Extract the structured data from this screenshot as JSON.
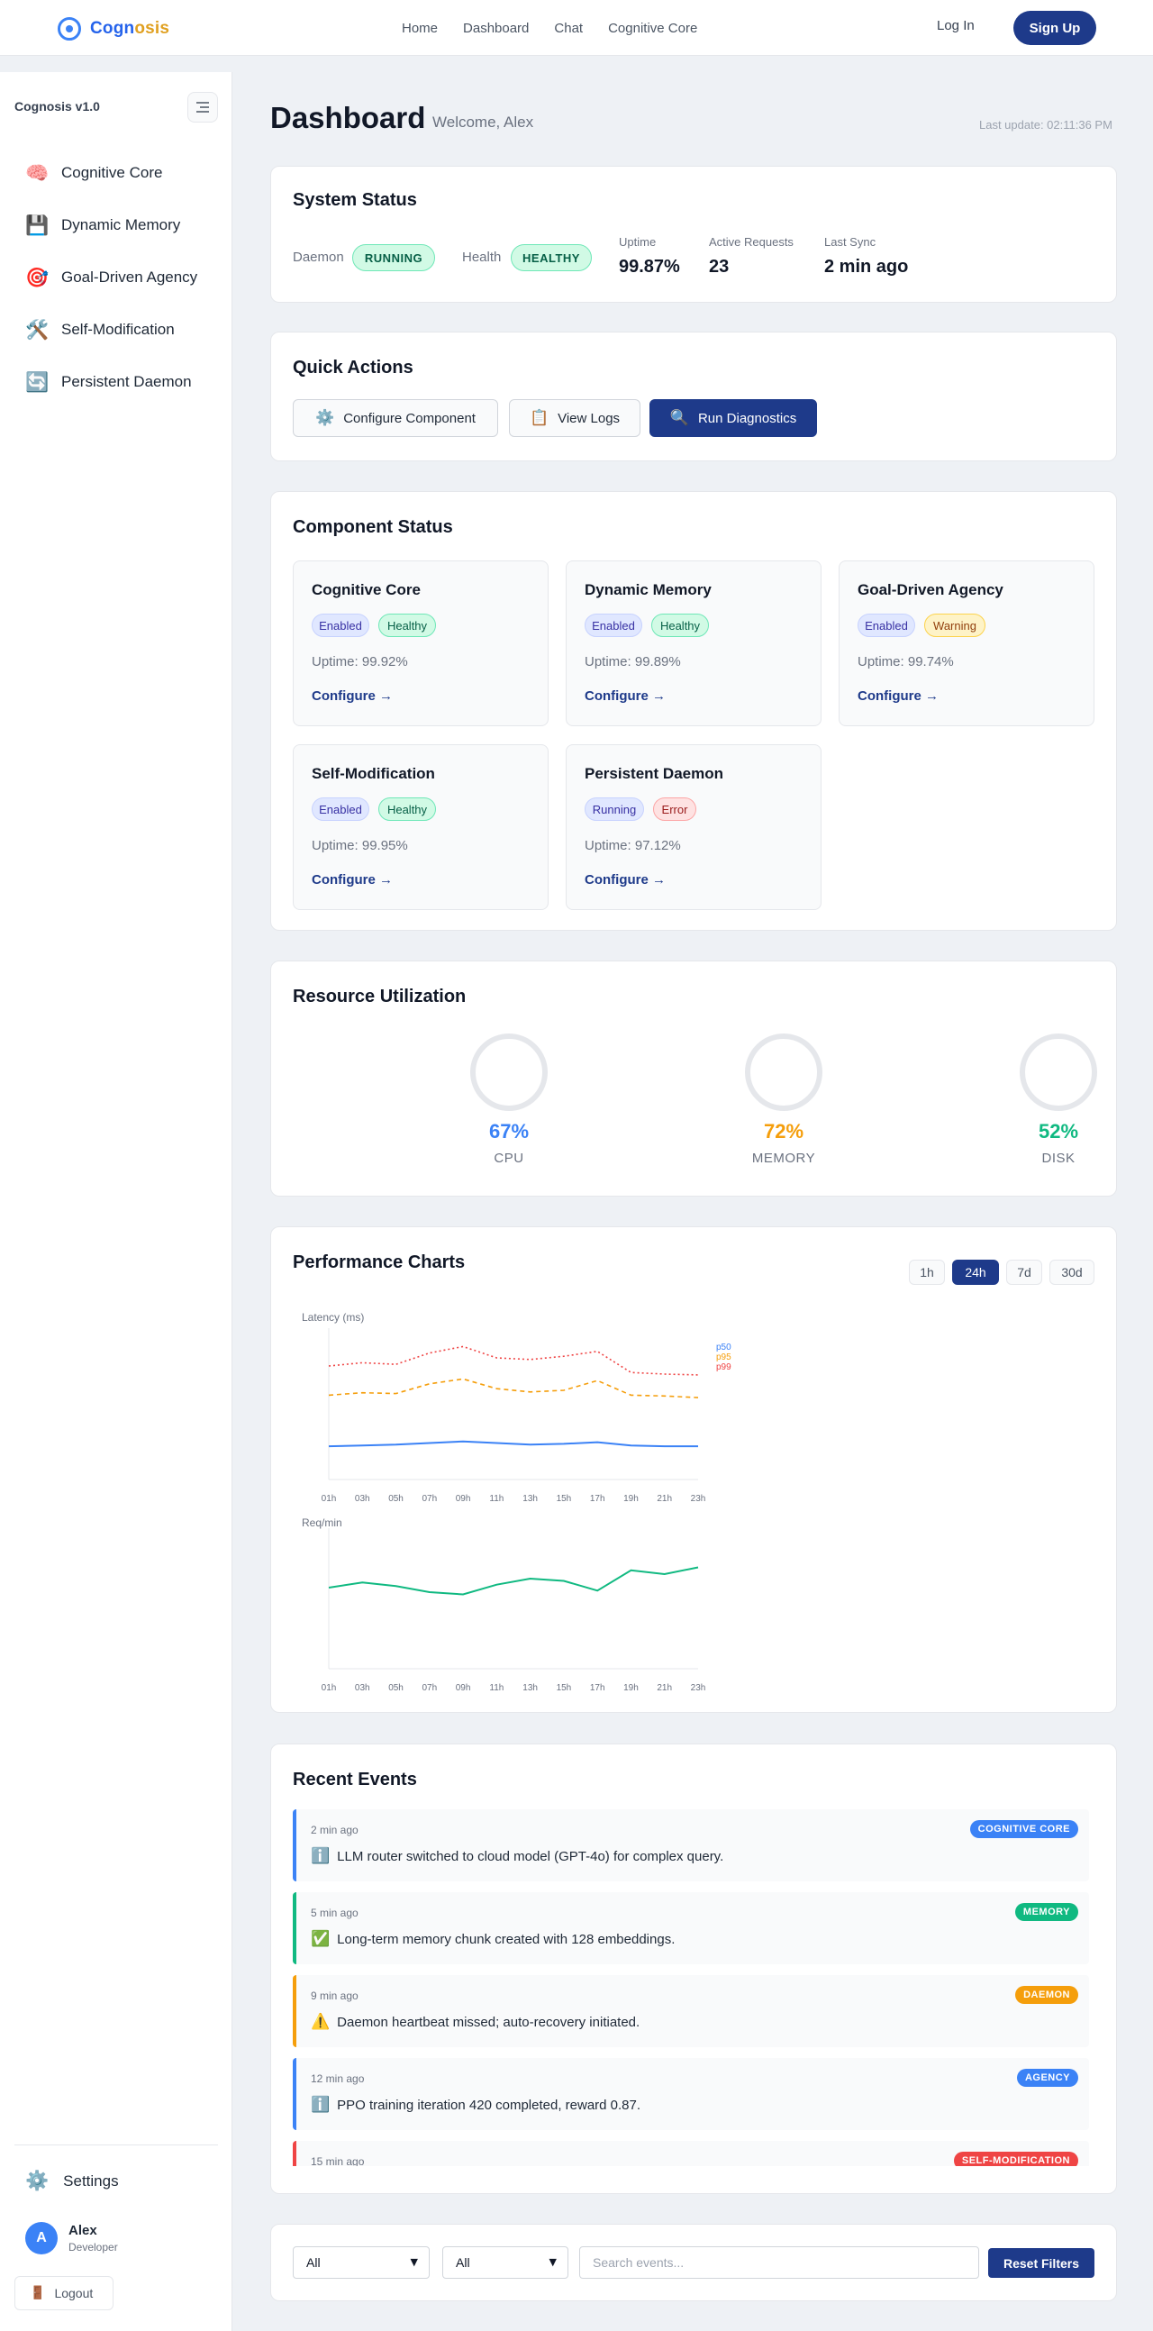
{
  "nav": {
    "brand_a": "Cogn",
    "brand_b": "osis",
    "links": [
      "Home",
      "Dashboard",
      "Chat",
      "Cognitive Core"
    ],
    "login": "Log In",
    "signup": "Sign Up"
  },
  "sidebar": {
    "title": "Cognosis v1.0",
    "items": [
      {
        "icon": "🧠",
        "icon_name": "brain-icon",
        "label": "Cognitive Core"
      },
      {
        "icon": "💾",
        "icon_name": "floppy-disk-icon",
        "label": "Dynamic Memory"
      },
      {
        "icon": "🎯",
        "icon_name": "target-icon",
        "label": "Goal-Driven Agency"
      },
      {
        "icon": "🛠️",
        "icon_name": "tools-icon",
        "label": "Self-Modification"
      },
      {
        "icon": "🔄",
        "icon_name": "refresh-icon",
        "label": "Persistent Daemon"
      }
    ],
    "settings": {
      "icon": "⚙️",
      "label": "Settings"
    },
    "user": {
      "initial": "A",
      "name": "Alex",
      "role": "Developer"
    },
    "logout": {
      "icon": "🚪",
      "label": "Logout"
    }
  },
  "header": {
    "title": "Dashboard",
    "welcome": "Welcome, Alex",
    "last_update": "Last update: 02:11:36 PM"
  },
  "system_status": {
    "title": "System Status",
    "daemon_label": "Daemon",
    "daemon_value": "RUNNING",
    "health_label": "Health",
    "health_value": "HEALTHY",
    "uptime_label": "Uptime",
    "uptime_value": "99.87%",
    "requests_label": "Active Requests",
    "requests_value": "23",
    "sync_label": "Last Sync",
    "sync_value": "2 min ago"
  },
  "quick_actions": {
    "title": "Quick Actions",
    "configure": {
      "icon": "⚙️",
      "label": "Configure Component"
    },
    "logs": {
      "icon": "📋",
      "label": "View Logs"
    },
    "diagnostics": {
      "icon": "🔍",
      "label": "Run Diagnostics"
    }
  },
  "components": {
    "title": "Component Status",
    "configure_label": "Configure →",
    "items": [
      {
        "name": "Cognitive Core",
        "state": "Enabled",
        "health": "Healthy",
        "uptime": "Uptime: 99.92%"
      },
      {
        "name": "Dynamic Memory",
        "state": "Enabled",
        "health": "Healthy",
        "uptime": "Uptime: 99.89%"
      },
      {
        "name": "Goal-Driven Agency",
        "state": "Enabled",
        "health": "Warning",
        "uptime": "Uptime: 99.74%"
      },
      {
        "name": "Self-Modification",
        "state": "Enabled",
        "health": "Healthy",
        "uptime": "Uptime: 99.95%"
      },
      {
        "name": "Persistent Daemon",
        "state": "Running",
        "health": "Error",
        "uptime": "Uptime: 97.12%"
      }
    ]
  },
  "resources": {
    "title": "Resource Utilization",
    "items": [
      {
        "value": "67%",
        "label": "CPU",
        "color": "#3b82f6"
      },
      {
        "value": "72%",
        "label": "MEMORY",
        "color": "#f59e0b"
      },
      {
        "value": "52%",
        "label": "DISK",
        "color": "#10b981"
      }
    ]
  },
  "performance": {
    "title": "Performance Charts",
    "ranges": [
      "1h",
      "24h",
      "7d",
      "30d"
    ],
    "active_range": "24h"
  },
  "chart_data": [
    {
      "type": "line",
      "title": "",
      "ylabel": "Latency (ms)",
      "categories": [
        "01h",
        "03h",
        "05h",
        "07h",
        "09h",
        "11h",
        "13h",
        "15h",
        "17h",
        "19h",
        "21h",
        "23h"
      ],
      "series": [
        {
          "name": "p50",
          "color": "#3b82f6",
          "style": "solid",
          "values": [
            41,
            42,
            43,
            45,
            47,
            45,
            43,
            44,
            46,
            42,
            41,
            41
          ]
        },
        {
          "name": "p95",
          "color": "#f59e0b",
          "style": "dashed",
          "values": [
            104,
            107,
            106,
            118,
            124,
            112,
            108,
            110,
            122,
            104,
            103,
            101
          ]
        },
        {
          "name": "p99",
          "color": "#ef4444",
          "style": "dotted",
          "values": [
            140,
            144,
            142,
            156,
            164,
            150,
            148,
            152,
            158,
            132,
            130,
            129
          ]
        }
      ],
      "ylim": [
        0,
        180
      ],
      "legend": "right"
    },
    {
      "type": "line",
      "title": "",
      "ylabel": "Req/min",
      "categories": [
        "01h",
        "03h",
        "05h",
        "07h",
        "09h",
        "11h",
        "13h",
        "15h",
        "17h",
        "19h",
        "21h",
        "23h"
      ],
      "series": [
        {
          "color": "#10b981",
          "style": "solid",
          "values": [
            108,
            115,
            110,
            102,
            99,
            112,
            120,
            117,
            104,
            131,
            126,
            135
          ]
        }
      ],
      "ylim": [
        0,
        180
      ]
    }
  ],
  "events": {
    "title": "Recent Events",
    "items": [
      {
        "time": "2 min ago",
        "tag": "COGNITIVE CORE",
        "tag_color": "#3b82f6",
        "border": "#3b82f6",
        "icon": "ℹ️",
        "icon_name": "info-icon",
        "message": "LLM router switched to cloud model (GPT-4o) for complex query."
      },
      {
        "time": "5 min ago",
        "tag": "MEMORY",
        "tag_color": "#10b981",
        "border": "#10b981",
        "icon": "✅",
        "icon_name": "check-icon",
        "message": "Long-term memory chunk created with 128 embeddings."
      },
      {
        "time": "9 min ago",
        "tag": "DAEMON",
        "tag_color": "#f59e0b",
        "border": "#f59e0b",
        "icon": "⚠️",
        "icon_name": "warning-icon",
        "message": "Daemon heartbeat missed; auto-recovery initiated."
      },
      {
        "time": "12 min ago",
        "tag": "AGENCY",
        "tag_color": "#3b82f6",
        "border": "#3b82f6",
        "icon": "ℹ️",
        "icon_name": "info-icon",
        "message": "PPO training iteration 420 completed, reward 0.87."
      },
      {
        "time": "15 min ago",
        "tag": "SELF-MODIFICATION",
        "tag_color": "#ef4444",
        "border": "#ef4444",
        "icon": "",
        "icon_name": "",
        "message": ""
      }
    ]
  },
  "filters": {
    "select1": "All",
    "select2": "All",
    "search_placeholder": "Search events...",
    "reset": "Reset Filters"
  }
}
